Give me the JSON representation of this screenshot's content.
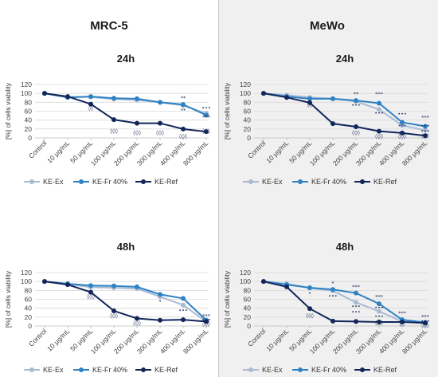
{
  "columns": [
    {
      "title": "MRC-5"
    },
    {
      "title": "MeWo"
    }
  ],
  "colors": {
    "KE-Ex": "#a9bad3",
    "KE-Fr 40%": "#2e82c4",
    "KE-Ref": "#13265a",
    "right_bg": "#f0f0f0"
  },
  "chart_data": [
    {
      "type": "line",
      "panel": "MRC-5",
      "title": "24h",
      "ylabel": "[%] of cells viability",
      "ylim": [
        0,
        120
      ],
      "yticks": [
        0,
        20,
        40,
        60,
        80,
        100,
        120
      ],
      "categories": [
        "Control",
        "10 μg/mL",
        "50 μg/mL",
        "100 μg/mL",
        "200 μg/mL",
        "300 μg/mL",
        "400 μg/mL",
        "800 μg/mL"
      ],
      "legend": [
        "KE-Ex",
        "KE-Fr 40%",
        "KE-Ref"
      ],
      "series": [
        {
          "name": "KE-Ex",
          "values": [
            100,
            92,
            92,
            87,
            85,
            80,
            73,
            55
          ]
        },
        {
          "name": "KE-Fr 40%",
          "values": [
            100,
            91,
            93,
            89,
            88,
            80,
            75,
            51
          ]
        },
        {
          "name": "KE-Ref",
          "values": [
            100,
            93,
            76,
            41,
            33,
            33,
            20,
            14
          ]
        }
      ],
      "annotations": [
        {
          "cat": 2,
          "y": 63,
          "text": "◊◊"
        },
        {
          "cat": 3,
          "y": 12,
          "text": "◊◊◊"
        },
        {
          "cat": 4,
          "y": 8,
          "text": "◊◊◊"
        },
        {
          "cat": 5,
          "y": 8,
          "text": "◊◊◊"
        },
        {
          "cat": 6,
          "y": 86,
          "text": "**"
        },
        {
          "cat": 6,
          "y": 58,
          "text": "**"
        },
        {
          "cat": 6,
          "y": 0,
          "text": "◊◊◊"
        },
        {
          "cat": 7,
          "y": 64,
          "text": "•••"
        },
        {
          "cat": 7,
          "y": 43,
          "text": "***"
        },
        {
          "cat": 7,
          "y": 12,
          "text": "◊◊◊"
        }
      ]
    },
    {
      "type": "line",
      "panel": "MeWo",
      "title": "24h",
      "ylabel": "[%] of cells viability",
      "ylim": [
        0,
        120
      ],
      "yticks": [
        0,
        20,
        40,
        60,
        80,
        100,
        120
      ],
      "categories": [
        "Control",
        "10 μg/mL",
        "50 μg/mL",
        "100 μg/mL",
        "200 μg/mL",
        "300 μg/mL",
        "400 μg/mL",
        "800 μg/mL"
      ],
      "legend": [
        "KE-Ex",
        "KE-Fr 40%",
        "KE-Ref"
      ],
      "series": [
        {
          "name": "KE-Ex",
          "values": [
            100,
            96,
            91,
            88,
            82,
            64,
            28,
            17
          ]
        },
        {
          "name": "KE-Fr 40%",
          "values": [
            100,
            93,
            88,
            88,
            84,
            78,
            35,
            26
          ]
        },
        {
          "name": "KE-Ref",
          "values": [
            100,
            91,
            79,
            32,
            25,
            15,
            11,
            5
          ]
        }
      ],
      "annotations": [
        {
          "cat": 2,
          "y": 71,
          "text": "◊◊"
        },
        {
          "cat": 4,
          "y": 95,
          "text": "**"
        },
        {
          "cat": 4,
          "y": 70,
          "text": "•••"
        },
        {
          "cat": 4,
          "y": 8,
          "text": "◊◊◊"
        },
        {
          "cat": 5,
          "y": 95,
          "text": "***"
        },
        {
          "cat": 5,
          "y": 52,
          "text": "•••"
        },
        {
          "cat": 5,
          "y": 0,
          "text": "◊◊◊"
        },
        {
          "cat": 6,
          "y": 50,
          "text": "•••"
        },
        {
          "cat": 6,
          "y": 22,
          "text": "***"
        },
        {
          "cat": 6,
          "y": 0,
          "text": "◊◊◊"
        },
        {
          "cat": 7,
          "y": 42,
          "text": "***"
        },
        {
          "cat": 7,
          "y": 23,
          "text": "•••"
        },
        {
          "cat": 7,
          "y": 12,
          "text": "•••"
        },
        {
          "cat": 7,
          "y": 1,
          "text": "◊◊◊"
        }
      ]
    },
    {
      "type": "line",
      "panel": "MRC-5",
      "title": "48h",
      "ylabel": "[%] of cells viability",
      "ylim": [
        0,
        120
      ],
      "yticks": [
        0,
        20,
        40,
        60,
        80,
        100,
        120
      ],
      "categories": [
        "Control",
        "10 μg/mL",
        "50 μg/mL",
        "100 μg/mL",
        "200 μg/mL",
        "300 μg/mL",
        "400 μg/mL",
        "800 μg/mL"
      ],
      "legend": [
        "KE-Ex",
        "KE-Fr 40%",
        "KE-Ref"
      ],
      "series": [
        {
          "name": "KE-Ex",
          "values": [
            100,
            94,
            87,
            86,
            84,
            66,
            47,
            10
          ]
        },
        {
          "name": "KE-Fr 40%",
          "values": [
            100,
            95,
            91,
            90,
            88,
            71,
            62,
            13
          ]
        },
        {
          "name": "KE-Ref",
          "values": [
            100,
            93,
            76,
            34,
            17,
            13,
            14,
            10
          ]
        }
      ],
      "annotations": [
        {
          "cat": 2,
          "y": 63,
          "text": "◊◊◊"
        },
        {
          "cat": 3,
          "y": 20,
          "text": "◊◊◊"
        },
        {
          "cat": 4,
          "y": 3,
          "text": "◊◊◊"
        },
        {
          "cat": 5,
          "y": 52,
          "text": "•"
        },
        {
          "cat": 6,
          "y": 31,
          "text": "•••"
        },
        {
          "cat": 7,
          "y": 19,
          "text": "***"
        },
        {
          "cat": 7,
          "y": 10,
          "text": "•••"
        },
        {
          "cat": 7,
          "y": 1,
          "text": "◊◊◊"
        }
      ]
    },
    {
      "type": "line",
      "panel": "MeWo",
      "title": "48h",
      "ylabel": "[%] of cells viability",
      "ylim": [
        0,
        120
      ],
      "yticks": [
        0,
        20,
        40,
        60,
        80,
        100,
        120
      ],
      "categories": [
        "Control",
        "10 μg/mL",
        "50 μg/mL",
        "100 μg/mL",
        "200 μg/mL",
        "300 μg/mL",
        "400 μg/mL",
        "800 μg/mL"
      ],
      "legend": [
        "KE-Ex",
        "KE-Fr 40%",
        "KE-Ref"
      ],
      "series": [
        {
          "name": "KE-Ex",
          "values": [
            100,
            95,
            85,
            79,
            53,
            33,
            10,
            6
          ]
        },
        {
          "name": "KE-Fr 40%",
          "values": [
            100,
            93,
            86,
            82,
            74,
            50,
            14,
            8
          ]
        },
        {
          "name": "KE-Ref",
          "values": [
            100,
            88,
            39,
            11,
            10,
            9,
            9,
            7
          ]
        }
      ],
      "annotations": [
        {
          "cat": 2,
          "y": 70,
          "text": "•"
        },
        {
          "cat": 2,
          "y": 20,
          "text": "◊◊◊"
        },
        {
          "cat": 3,
          "y": 92,
          "text": "*"
        },
        {
          "cat": 3,
          "y": 64,
          "text": "•••"
        },
        {
          "cat": 4,
          "y": 84,
          "text": "***"
        },
        {
          "cat": 4,
          "y": 40,
          "text": "•••"
        },
        {
          "cat": 4,
          "y": 28,
          "text": "•••"
        },
        {
          "cat": 5,
          "y": 62,
          "text": "***"
        },
        {
          "cat": 5,
          "y": 38,
          "text": "•••"
        },
        {
          "cat": 5,
          "y": 18,
          "text": "•••"
        },
        {
          "cat": 5,
          "y": 4,
          "text": "◊◊◊"
        },
        {
          "cat": 6,
          "y": 25,
          "text": "***"
        },
        {
          "cat": 6,
          "y": 1,
          "text": "◊◊"
        },
        {
          "cat": 7,
          "y": 17,
          "text": "***"
        },
        {
          "cat": 7,
          "y": 7,
          "text": "•••"
        },
        {
          "cat": 7,
          "y": -3,
          "text": "◊◊◊"
        }
      ]
    }
  ]
}
